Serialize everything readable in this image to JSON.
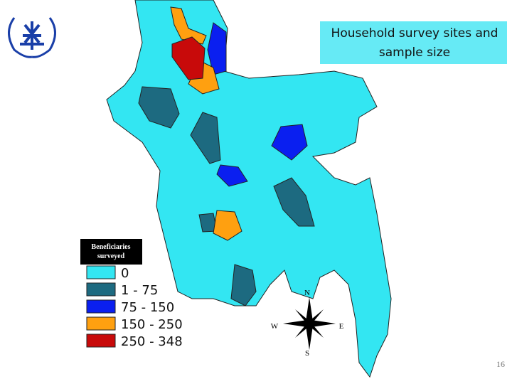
{
  "title": "Household survey sites and sample size",
  "legend": {
    "title": "Beneficiaries surveyed",
    "items": [
      {
        "label": "0",
        "color": "#33e6f2"
      },
      {
        "label": "1 - 75",
        "color": "#1d6a80"
      },
      {
        "label": "75 - 150",
        "color": "#0a1ff0"
      },
      {
        "label": "150 - 250",
        "color": "#ffa010"
      },
      {
        "label": "250 - 348",
        "color": "#c80a0a"
      }
    ]
  },
  "compass": {
    "north": "N",
    "west": "W",
    "east": "E",
    "south": "S"
  },
  "page_number": "16"
}
